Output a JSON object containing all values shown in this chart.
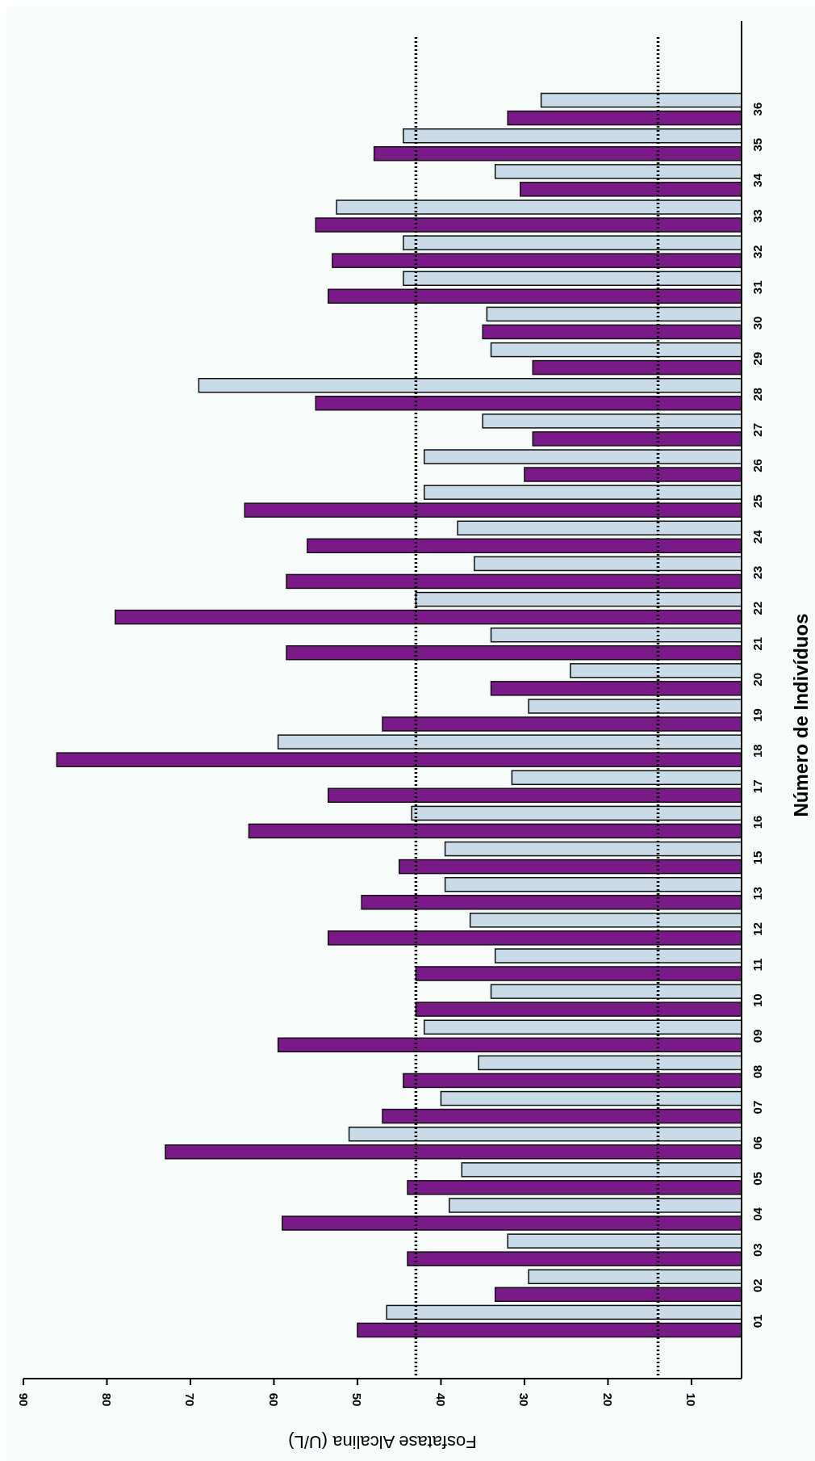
{
  "chart_data": {
    "type": "bar",
    "orientation": "horizontal",
    "xlabel": "Fosfatase Alcalina (U/L)",
    "ylabel": "Número de Indivíduos",
    "categories": [
      "36",
      "35",
      "34",
      "33",
      "32",
      "31",
      "30",
      "29",
      "28",
      "27",
      "26",
      "25",
      "24",
      "23",
      "22",
      "21",
      "20",
      "19",
      "18",
      "17",
      "16",
      "15",
      "13",
      "12",
      "11",
      "10",
      "09",
      "08",
      "07",
      "06",
      "05",
      "04",
      "03",
      "02",
      "01"
    ],
    "series": [
      {
        "color": "#c9dbe8",
        "values": [
          28,
          44.5,
          33.5,
          52.5,
          44.5,
          44.5,
          34.5,
          34,
          69,
          35,
          42,
          42,
          38,
          36,
          43,
          34,
          24.5,
          29.5,
          59.5,
          31.5,
          43.5,
          39.5,
          39.5,
          36.5,
          33.5,
          34,
          42,
          35.5,
          40,
          51,
          37.5,
          39,
          32,
          29.5,
          46.5
        ]
      },
      {
        "color": "#7a1a88",
        "values": [
          32,
          48,
          30.5,
          55,
          53,
          53.5,
          35,
          29,
          55,
          29,
          30,
          63.5,
          56,
          58.5,
          79,
          58.5,
          34,
          47,
          86,
          53.5,
          63,
          45,
          49.5,
          53.5,
          43,
          43,
          59.5,
          44.5,
          47,
          73,
          44,
          59,
          44,
          33.5,
          50
        ]
      }
    ],
    "xlim": [
      90,
      4
    ],
    "xticks": [
      90,
      80,
      70,
      60,
      50,
      40,
      30,
      20,
      10
    ],
    "ref_lines": [
      {
        "axis": "x",
        "value": 43,
        "line_style": "dotted"
      },
      {
        "axis": "x",
        "value": 14,
        "line_style": "dotted"
      }
    ],
    "grid": false
  }
}
